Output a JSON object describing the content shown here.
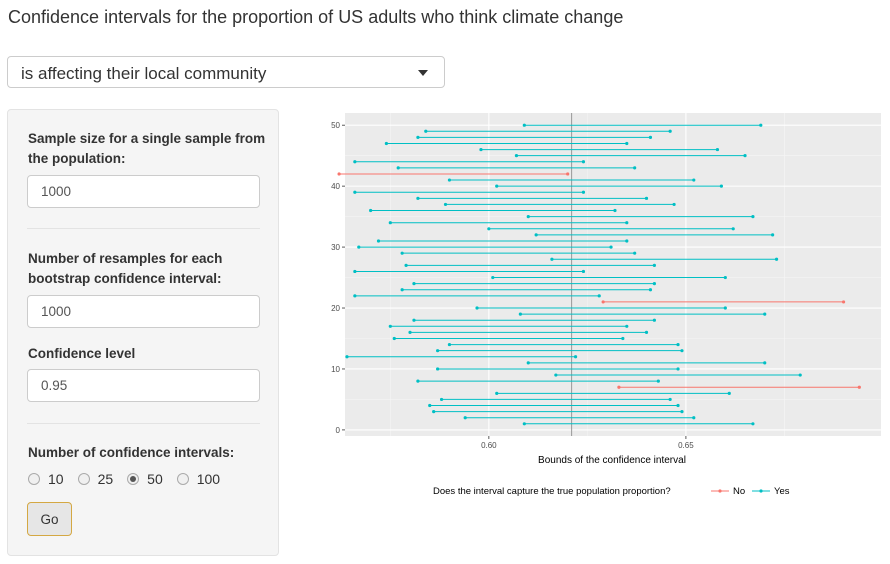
{
  "page_title": "Confidence intervals for the proportion of US adults who think climate change",
  "question_select": {
    "selected": "is affecting their local community"
  },
  "sidebar": {
    "sample_size_label": "Sample size for a single sample from the population:",
    "sample_size_value": "1000",
    "resamples_label": "Number of resamples for each bootstrap confidence interval:",
    "resamples_value": "1000",
    "confidence_label": "Confidence level",
    "confidence_value": "0.95",
    "num_intervals_label": "Number of confidence intervals:",
    "num_intervals_options": [
      "10",
      "25",
      "50",
      "100"
    ],
    "num_intervals_selected": "50",
    "go_label": "Go"
  },
  "colors": {
    "no": "#f8766d",
    "yes": "#00bfc4",
    "panel_bg": "#ebebeb"
  },
  "chart_data": {
    "type": "interval",
    "xlabel": "Bounds of the confidence interval",
    "ylabel": "",
    "xlim": [
      0.5635,
      0.6995
    ],
    "ylim": [
      -1,
      52
    ],
    "x_ticks": [
      0.6,
      0.65
    ],
    "x_tick_labels": [
      "0.60",
      "0.65"
    ],
    "y_ticks": [
      0,
      10,
      20,
      30,
      40,
      50
    ],
    "y_tick_labels": [
      "0",
      "10",
      "20",
      "30",
      "40",
      "50"
    ],
    "true_proportion": 0.621,
    "grid": true,
    "legend": {
      "title": "Does the interval capture the true population proportion?",
      "position": "bottom",
      "entries": [
        {
          "label": "No",
          "color": "#f8766d"
        },
        {
          "label": "Yes",
          "color": "#00bfc4"
        }
      ]
    },
    "intervals": [
      {
        "y": 1,
        "lower": 0.609,
        "upper": 0.667,
        "captures": "Yes"
      },
      {
        "y": 2,
        "lower": 0.594,
        "upper": 0.652,
        "captures": "Yes"
      },
      {
        "y": 3,
        "lower": 0.586,
        "upper": 0.649,
        "captures": "Yes"
      },
      {
        "y": 4,
        "lower": 0.585,
        "upper": 0.648,
        "captures": "Yes"
      },
      {
        "y": 5,
        "lower": 0.588,
        "upper": 0.646,
        "captures": "Yes"
      },
      {
        "y": 6,
        "lower": 0.602,
        "upper": 0.661,
        "captures": "Yes"
      },
      {
        "y": 7,
        "lower": 0.633,
        "upper": 0.694,
        "captures": "No"
      },
      {
        "y": 8,
        "lower": 0.582,
        "upper": 0.643,
        "captures": "Yes"
      },
      {
        "y": 9,
        "lower": 0.617,
        "upper": 0.679,
        "captures": "Yes"
      },
      {
        "y": 10,
        "lower": 0.587,
        "upper": 0.648,
        "captures": "Yes"
      },
      {
        "y": 11,
        "lower": 0.61,
        "upper": 0.67,
        "captures": "Yes"
      },
      {
        "y": 12,
        "lower": 0.564,
        "upper": 0.622,
        "captures": "Yes"
      },
      {
        "y": 13,
        "lower": 0.587,
        "upper": 0.649,
        "captures": "Yes"
      },
      {
        "y": 14,
        "lower": 0.59,
        "upper": 0.648,
        "captures": "Yes"
      },
      {
        "y": 15,
        "lower": 0.576,
        "upper": 0.634,
        "captures": "Yes"
      },
      {
        "y": 16,
        "lower": 0.58,
        "upper": 0.64,
        "captures": "Yes"
      },
      {
        "y": 17,
        "lower": 0.575,
        "upper": 0.635,
        "captures": "Yes"
      },
      {
        "y": 18,
        "lower": 0.581,
        "upper": 0.642,
        "captures": "Yes"
      },
      {
        "y": 19,
        "lower": 0.608,
        "upper": 0.67,
        "captures": "Yes"
      },
      {
        "y": 20,
        "lower": 0.597,
        "upper": 0.66,
        "captures": "Yes"
      },
      {
        "y": 21,
        "lower": 0.629,
        "upper": 0.69,
        "captures": "No"
      },
      {
        "y": 22,
        "lower": 0.566,
        "upper": 0.628,
        "captures": "Yes"
      },
      {
        "y": 23,
        "lower": 0.578,
        "upper": 0.641,
        "captures": "Yes"
      },
      {
        "y": 24,
        "lower": 0.581,
        "upper": 0.642,
        "captures": "Yes"
      },
      {
        "y": 25,
        "lower": 0.601,
        "upper": 0.66,
        "captures": "Yes"
      },
      {
        "y": 26,
        "lower": 0.566,
        "upper": 0.624,
        "captures": "Yes"
      },
      {
        "y": 27,
        "lower": 0.579,
        "upper": 0.642,
        "captures": "Yes"
      },
      {
        "y": 28,
        "lower": 0.616,
        "upper": 0.673,
        "captures": "Yes"
      },
      {
        "y": 29,
        "lower": 0.578,
        "upper": 0.637,
        "captures": "Yes"
      },
      {
        "y": 30,
        "lower": 0.567,
        "upper": 0.631,
        "captures": "Yes"
      },
      {
        "y": 31,
        "lower": 0.572,
        "upper": 0.635,
        "captures": "Yes"
      },
      {
        "y": 32,
        "lower": 0.612,
        "upper": 0.672,
        "captures": "Yes"
      },
      {
        "y": 33,
        "lower": 0.6,
        "upper": 0.662,
        "captures": "Yes"
      },
      {
        "y": 34,
        "lower": 0.575,
        "upper": 0.635,
        "captures": "Yes"
      },
      {
        "y": 35,
        "lower": 0.61,
        "upper": 0.667,
        "captures": "Yes"
      },
      {
        "y": 36,
        "lower": 0.57,
        "upper": 0.632,
        "captures": "Yes"
      },
      {
        "y": 37,
        "lower": 0.589,
        "upper": 0.647,
        "captures": "Yes"
      },
      {
        "y": 38,
        "lower": 0.582,
        "upper": 0.64,
        "captures": "Yes"
      },
      {
        "y": 39,
        "lower": 0.566,
        "upper": 0.624,
        "captures": "Yes"
      },
      {
        "y": 40,
        "lower": 0.602,
        "upper": 0.659,
        "captures": "Yes"
      },
      {
        "y": 41,
        "lower": 0.59,
        "upper": 0.652,
        "captures": "Yes"
      },
      {
        "y": 42,
        "lower": 0.562,
        "upper": 0.62,
        "captures": "No"
      },
      {
        "y": 43,
        "lower": 0.577,
        "upper": 0.637,
        "captures": "Yes"
      },
      {
        "y": 44,
        "lower": 0.566,
        "upper": 0.624,
        "captures": "Yes"
      },
      {
        "y": 45,
        "lower": 0.607,
        "upper": 0.665,
        "captures": "Yes"
      },
      {
        "y": 46,
        "lower": 0.598,
        "upper": 0.658,
        "captures": "Yes"
      },
      {
        "y": 47,
        "lower": 0.574,
        "upper": 0.635,
        "captures": "Yes"
      },
      {
        "y": 48,
        "lower": 0.582,
        "upper": 0.641,
        "captures": "Yes"
      },
      {
        "y": 49,
        "lower": 0.584,
        "upper": 0.646,
        "captures": "Yes"
      },
      {
        "y": 50,
        "lower": 0.609,
        "upper": 0.669,
        "captures": "Yes"
      }
    ]
  }
}
